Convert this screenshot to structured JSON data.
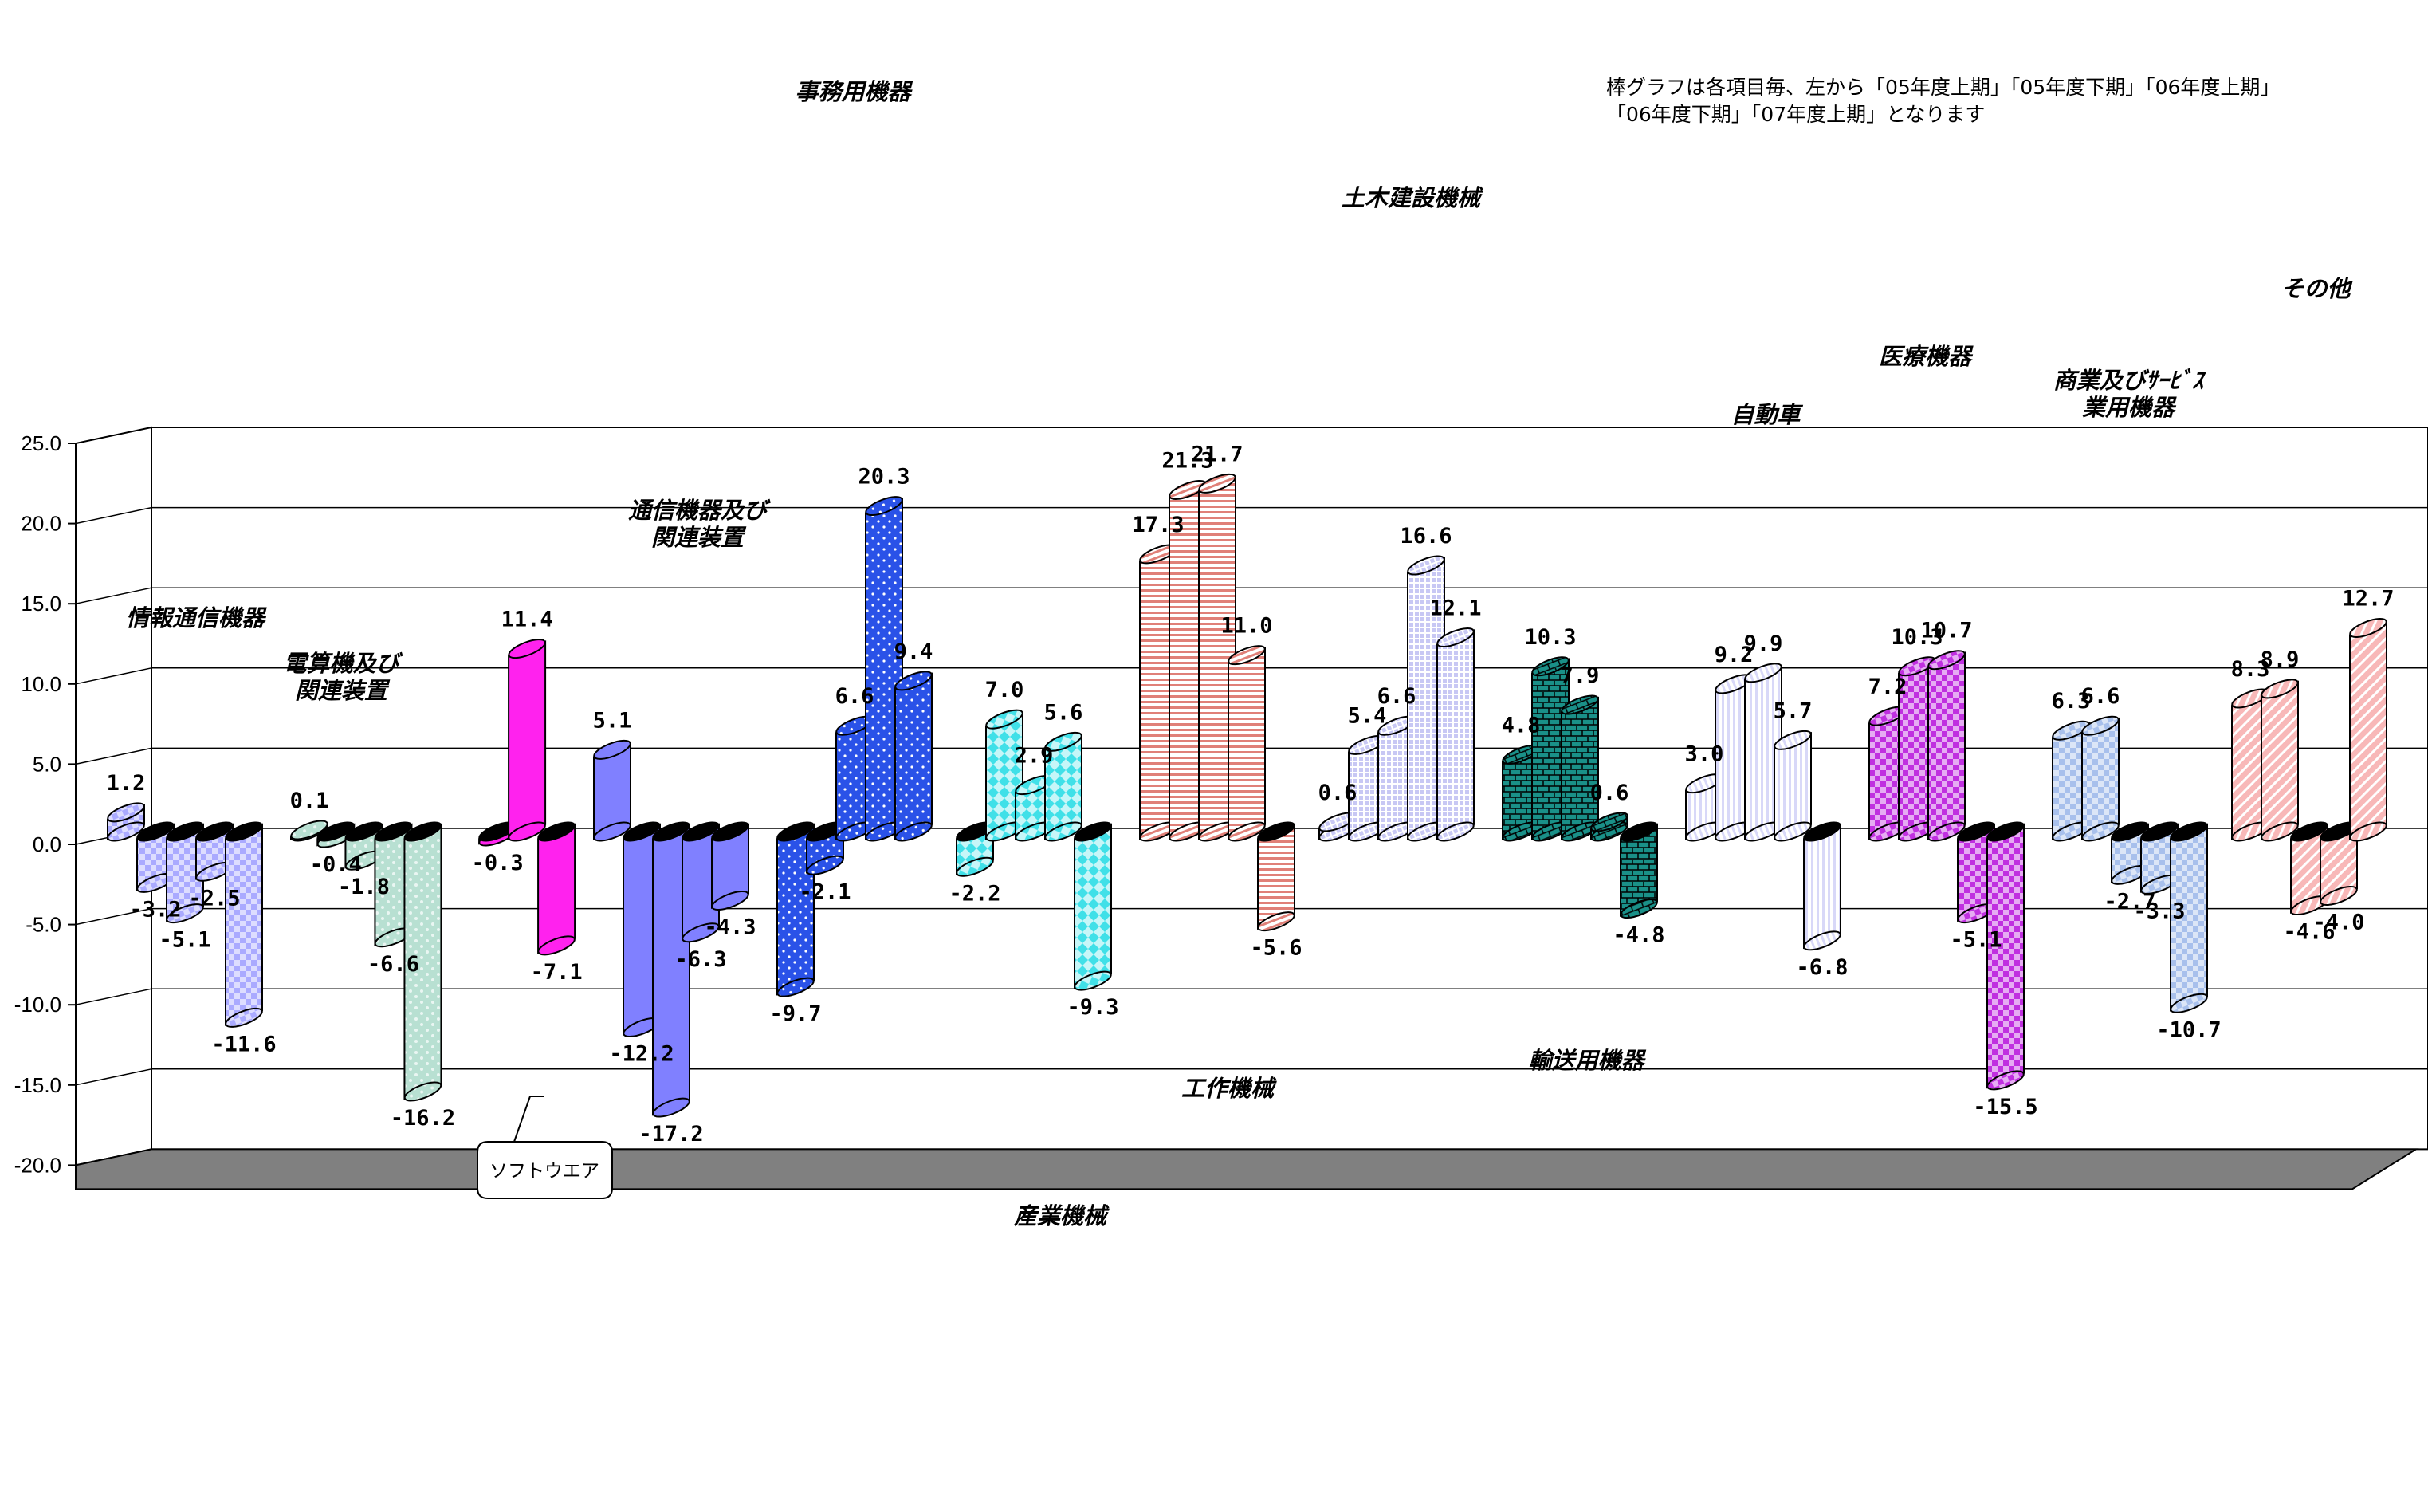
{
  "chart_data": {
    "type": "bar",
    "ylim": [
      -20,
      25
    ],
    "yticks": [
      "25.0",
      "20.0",
      "15.0",
      "10.0",
      "5.0",
      "0.0",
      "-5.0",
      "-10.0",
      "-15.0",
      "-20.0"
    ],
    "grid": true,
    "series": [
      {
        "name": "05年度上期"
      },
      {
        "name": "05年度下期"
      },
      {
        "name": "06年度上期"
      },
      {
        "name": "06年度下期"
      },
      {
        "name": "07年度上期"
      }
    ],
    "categories": [
      {
        "name": [
          "情報通信機器"
        ],
        "color": "#aaaaff",
        "values": [
          1.2,
          -3.2,
          -5.1,
          -2.5,
          -11.6
        ],
        "labels": [
          "1.2",
          "-3.2",
          "-5.1",
          "-2.5",
          "-11.6"
        ]
      },
      {
        "name": [
          "電算機及び",
          "関連装置"
        ],
        "color": "#b8e0d2",
        "values": [
          0.1,
          -0.4,
          -1.8,
          -6.6,
          -16.2
        ],
        "labels": [
          "0.1",
          "-0.4",
          "-1.8",
          "-6.6",
          "-16.2"
        ]
      },
      {
        "name": [],
        "color": "#ff22ee",
        "values": [
          -0.3,
          11.4,
          -7.1
        ],
        "labels": [
          "-0.3",
          "11.4",
          "-7.1"
        ]
      },
      {
        "name": [
          "通信機器及び",
          "関連装置"
        ],
        "color": "#8080ff",
        "values": [
          5.1,
          -12.2,
          -17.2,
          -6.3,
          -4.3
        ],
        "labels": [
          "5.1",
          "-12.2",
          "-17.2",
          "-6.3",
          "-4.3"
        ]
      },
      {
        "name": [
          "事務用機器"
        ],
        "color": "#2a52e8",
        "values": [
          -9.7,
          -2.1,
          6.6,
          20.3,
          9.4
        ],
        "labels": [
          "-9.7",
          "-2.1",
          "6.6",
          "20.3",
          "9.4"
        ]
      },
      {
        "name": [
          "産業機械"
        ],
        "color": "#40e0e8",
        "values": [
          -2.2,
          7.0,
          2.9,
          5.6,
          -9.3
        ],
        "labels": [
          "-2.2",
          "7.0",
          "2.9",
          "5.6",
          "-9.3"
        ]
      },
      {
        "name": [
          "工作機械"
        ],
        "color": "#e08078",
        "values": [
          17.3,
          21.3,
          21.7,
          11.0,
          -5.6
        ],
        "labels": [
          "17.3",
          "21.3",
          "21.7",
          "11.0",
          "-5.6"
        ]
      },
      {
        "name": [
          "土木建設機械"
        ],
        "color": "#c8c8f4",
        "values": [
          0.6,
          5.4,
          6.6,
          16.6,
          12.1
        ],
        "labels": [
          "0.6",
          "5.4",
          "6.6",
          "16.6",
          "12.1"
        ]
      },
      {
        "name": [
          "輸送用機器"
        ],
        "color": "#1a9088",
        "values": [
          4.8,
          10.3,
          7.9,
          0.6,
          -4.8
        ],
        "labels": [
          "4.8",
          "10.3",
          "7.9",
          "0.6",
          "-4.8"
        ]
      },
      {
        "name": [
          "自動車"
        ],
        "color": "#d8d8f8",
        "values": [
          3.0,
          9.2,
          9.9,
          5.7,
          -6.8
        ],
        "labels": [
          "3.0",
          "9.2",
          "9.9",
          "5.7",
          "-6.8"
        ]
      },
      {
        "name": [
          "医療機器"
        ],
        "color": "#c030e0",
        "values": [
          7.2,
          10.3,
          10.7,
          -5.1,
          -15.5
        ],
        "labels": [
          "7.2",
          "10.3",
          "10.7",
          "-5.1",
          "-15.5"
        ]
      },
      {
        "name": [
          "商業及びｻｰﾋﾞｽ",
          "業用機器"
        ],
        "color": "#a8c0ec",
        "values": [
          6.3,
          6.6,
          -2.7,
          -3.3,
          -10.7
        ],
        "labels": [
          "6.3",
          "6.6",
          "-2.7",
          "-3.3",
          "-10.7"
        ]
      },
      {
        "name": [
          "その他"
        ],
        "color": "#f8b8b8",
        "values": [
          8.3,
          8.9,
          -4.6,
          -4.0,
          12.7
        ],
        "labels": [
          "8.3",
          "8.9",
          "-4.6",
          "-4.0",
          "12.7"
        ]
      }
    ],
    "annotations": {
      "note_line1": "棒グラフは各項目毎、左から「05年度上期」「05年度下期」「06年度上期」",
      "note_line2": "「06年度下期」「07年度上期」となります",
      "callout": "ソフトウエア"
    }
  },
  "colors": {
    "floor": "#808080",
    "grid": "#000000",
    "background": "#ffffff"
  }
}
